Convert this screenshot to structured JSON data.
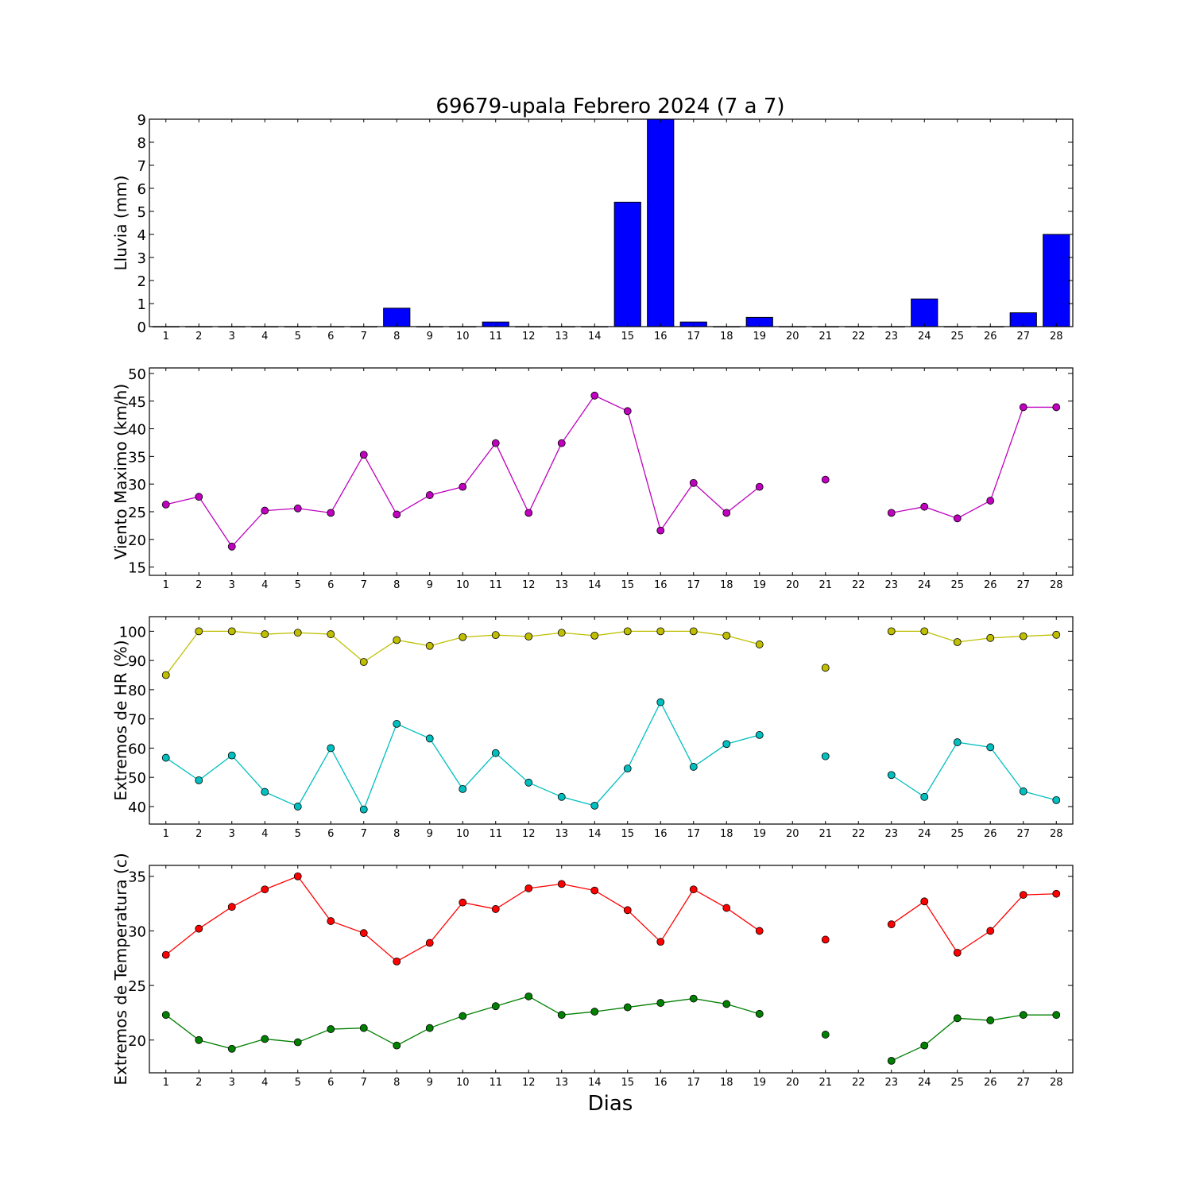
{
  "title": "69679-upala Febrero 2024  (7 a 7)",
  "xlabel": "Dias",
  "chart_data": [
    {
      "type": "bar",
      "ylabel": "Lluvia (mm)",
      "ylim": [
        0,
        9
      ],
      "yticks": [
        0,
        1,
        2,
        3,
        4,
        5,
        6,
        7,
        8,
        9
      ],
      "categories": [
        1,
        2,
        3,
        4,
        5,
        6,
        7,
        8,
        9,
        10,
        11,
        12,
        13,
        14,
        15,
        16,
        17,
        18,
        19,
        20,
        21,
        22,
        23,
        24,
        25,
        26,
        27,
        28
      ],
      "series": [
        {
          "color": "#0000ff",
          "values": [
            0,
            0,
            0,
            0,
            0,
            0,
            0,
            0.8,
            0,
            0,
            0.2,
            0,
            0,
            0,
            5.4,
            9.0,
            0.2,
            0,
            0.4,
            0,
            0,
            0,
            0,
            1.2,
            0,
            0,
            0.6,
            4.0
          ]
        }
      ]
    },
    {
      "type": "line",
      "ylabel": "Viento Maximo (km/h)",
      "ylim": [
        13.5,
        51
      ],
      "yticks": [
        15,
        20,
        25,
        30,
        35,
        40,
        45,
        50
      ],
      "x": [
        1,
        2,
        3,
        4,
        5,
        6,
        7,
        8,
        9,
        10,
        11,
        12,
        13,
        14,
        15,
        16,
        17,
        18,
        19,
        20,
        21,
        22,
        23,
        24,
        25,
        26,
        27,
        28
      ],
      "series": [
        {
          "color": "#bf00bf",
          "values": [
            26.3,
            27.7,
            18.7,
            25.2,
            25.6,
            24.8,
            35.3,
            24.5,
            28.0,
            29.5,
            37.4,
            24.8,
            37.4,
            46.0,
            43.2,
            21.6,
            30.2,
            24.8,
            29.5,
            null,
            30.8,
            null,
            24.8,
            25.9,
            23.8,
            27.0,
            43.9,
            43.9
          ]
        }
      ]
    },
    {
      "type": "line",
      "ylabel": "Extremos de HR (%)",
      "ylim": [
        34,
        105
      ],
      "yticks": [
        40,
        50,
        60,
        70,
        80,
        90,
        100
      ],
      "x": [
        1,
        2,
        3,
        4,
        5,
        6,
        7,
        8,
        9,
        10,
        11,
        12,
        13,
        14,
        15,
        16,
        17,
        18,
        19,
        20,
        21,
        22,
        23,
        24,
        25,
        26,
        27,
        28
      ],
      "series": [
        {
          "color": "#bfbf00",
          "values": [
            85,
            100,
            100,
            99,
            99.5,
            99,
            89.5,
            97,
            95,
            98,
            98.7,
            98.2,
            99.5,
            98.5,
            100,
            100,
            100,
            98.5,
            95.5,
            null,
            87.5,
            null,
            100,
            100,
            96.3,
            97.7,
            98.3,
            98.8
          ]
        },
        {
          "color": "#00bfbf",
          "values": [
            56.7,
            49,
            57.5,
            45,
            40,
            60,
            39,
            68.3,
            63.3,
            46,
            58.3,
            48.2,
            43.3,
            40.3,
            53,
            75.7,
            53.6,
            61.4,
            64.5,
            null,
            57.2,
            null,
            50.8,
            43.3,
            62,
            60.3,
            45.2,
            42.2
          ]
        }
      ]
    },
    {
      "type": "line",
      "ylabel": "Extremos de Temperatura (c)",
      "ylim": [
        17,
        36
      ],
      "yticks": [
        20,
        25,
        30,
        35
      ],
      "x": [
        1,
        2,
        3,
        4,
        5,
        6,
        7,
        8,
        9,
        10,
        11,
        12,
        13,
        14,
        15,
        16,
        17,
        18,
        19,
        20,
        21,
        22,
        23,
        24,
        25,
        26,
        27,
        28
      ],
      "series": [
        {
          "color": "#ff0000",
          "values": [
            27.8,
            30.2,
            32.2,
            33.8,
            35.0,
            30.9,
            29.8,
            27.2,
            28.9,
            32.6,
            32.0,
            33.9,
            34.3,
            33.7,
            31.9,
            29.0,
            33.8,
            32.1,
            30.0,
            null,
            29.2,
            null,
            30.6,
            32.7,
            28.0,
            30.0,
            33.3,
            33.4
          ]
        },
        {
          "color": "#008000",
          "values": [
            22.3,
            20.0,
            19.2,
            20.1,
            19.8,
            21.0,
            21.1,
            19.5,
            21.1,
            22.2,
            23.1,
            24.0,
            22.3,
            22.6,
            23.0,
            23.4,
            23.8,
            23.3,
            22.4,
            null,
            20.5,
            null,
            18.1,
            19.5,
            22.0,
            21.8,
            22.3,
            22.3
          ]
        }
      ]
    }
  ]
}
